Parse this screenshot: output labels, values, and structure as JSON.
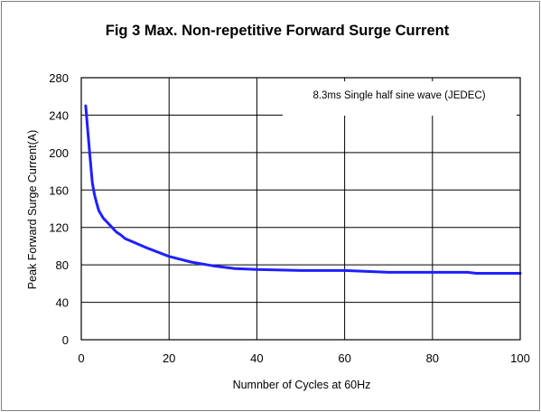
{
  "chart_data": {
    "type": "line",
    "title": "Fig 3 Max. Non-repetitive Forward Surge Current",
    "xlabel": "Numnber of Cycles at 60Hz",
    "ylabel": "Peak Forward Surge Current(A)",
    "annotation": "8.3ms Single half sine wave (JEDEC)",
    "xlim": [
      0,
      100
    ],
    "ylim": [
      0,
      280
    ],
    "xticks": [
      "0",
      "20",
      "40",
      "60",
      "80",
      "100"
    ],
    "yticks": [
      "0",
      "40",
      "80",
      "120",
      "160",
      "200",
      "240",
      "280"
    ],
    "grid": true,
    "line_color": "#1f1fff",
    "series": [
      {
        "x": [
          1,
          1.5,
          2,
          2.5,
          3,
          3.5,
          4,
          5,
          6,
          7,
          8,
          9,
          10,
          12,
          15,
          20,
          25,
          30,
          35,
          40,
          50,
          60,
          65,
          70,
          80,
          88,
          90,
          95,
          100
        ],
        "y": [
          250,
          222,
          195,
          168,
          155,
          146,
          138,
          130,
          125,
          120,
          115,
          112,
          108,
          104,
          98,
          89,
          83,
          79,
          76,
          75,
          74,
          74,
          73,
          72,
          72,
          72,
          71,
          71,
          71
        ]
      }
    ]
  }
}
